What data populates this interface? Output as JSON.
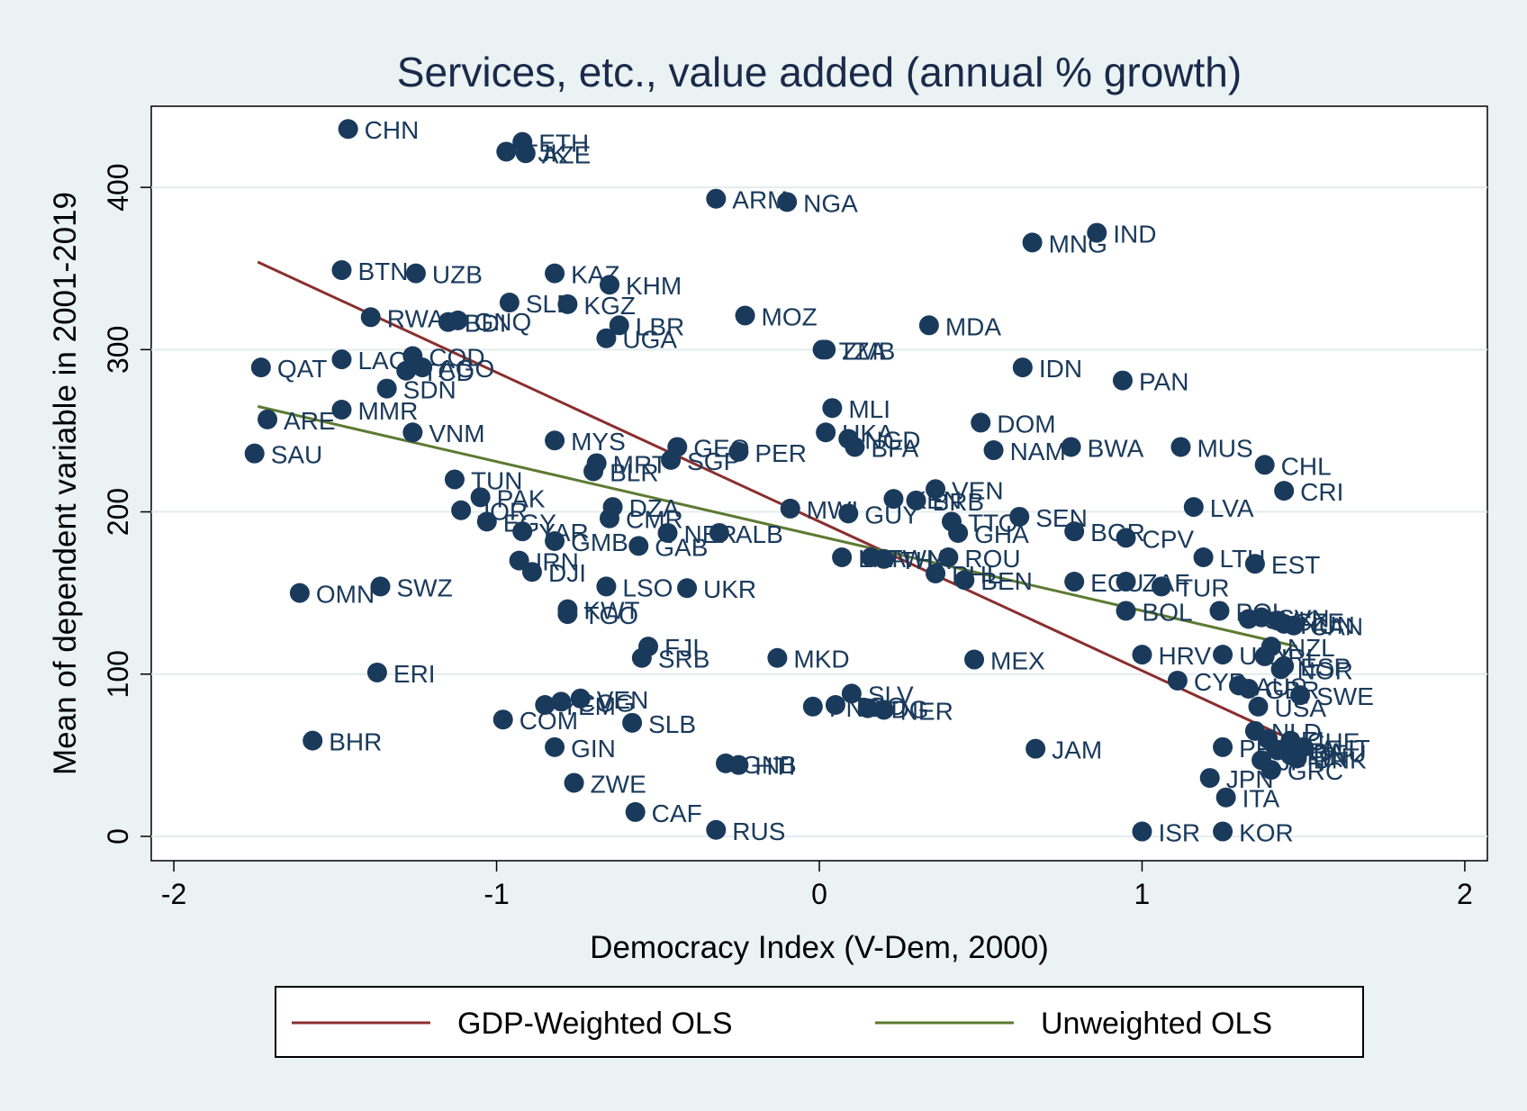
{
  "chart_data": {
    "type": "scatter",
    "title": "Services, etc., value added (annual % growth)",
    "xlabel": "Democracy Index (V-Dem, 2000)",
    "ylabel": "Mean of dependent variable in 2001-2019",
    "xlim": [
      -2.07,
      2.07
    ],
    "ylim": [
      -15,
      450
    ],
    "xticks": [
      -2,
      -1,
      0,
      1,
      2
    ],
    "yticks": [
      0,
      100,
      200,
      300,
      400
    ],
    "grid": "horizontal",
    "legend_position": "bottom",
    "colors": {
      "background": "#eaf2f3",
      "plot_bg": "#ffffff",
      "gridline": "#e3ecee",
      "marker": "#1a3a5c",
      "gdp_weighted": "#8b2e2e",
      "unweighted": "#5d7a32"
    },
    "series": [
      {
        "name": "Countries",
        "points": [
          {
            "label": "CHN",
            "x": -1.46,
            "y": 436
          },
          {
            "label": "ETH",
            "x": -0.92,
            "y": 428
          },
          {
            "label": "TJK",
            "x": -0.97,
            "y": 422
          },
          {
            "label": "AZE",
            "x": -0.91,
            "y": 421
          },
          {
            "label": "ARM",
            "x": -0.32,
            "y": 393
          },
          {
            "label": "NGA",
            "x": -0.1,
            "y": 391
          },
          {
            "label": "IND",
            "x": 0.86,
            "y": 372
          },
          {
            "label": "MNG",
            "x": 0.66,
            "y": 366
          },
          {
            "label": "BTN",
            "x": -1.48,
            "y": 349
          },
          {
            "label": "UZB",
            "x": -1.25,
            "y": 347
          },
          {
            "label": "KAZ",
            "x": -0.82,
            "y": 347
          },
          {
            "label": "KHM",
            "x": -0.65,
            "y": 340
          },
          {
            "label": "SLE",
            "x": -0.96,
            "y": 329
          },
          {
            "label": "KGZ",
            "x": -0.78,
            "y": 328
          },
          {
            "label": "RWA",
            "x": -1.39,
            "y": 320
          },
          {
            "label": "BDI",
            "x": -1.15,
            "y": 317
          },
          {
            "label": "GNQ",
            "x": -1.12,
            "y": 318
          },
          {
            "label": "LBR",
            "x": -0.62,
            "y": 315
          },
          {
            "label": "MOZ",
            "x": -0.23,
            "y": 321
          },
          {
            "label": "MDA",
            "x": 0.34,
            "y": 315
          },
          {
            "label": "UGA",
            "x": -0.66,
            "y": 307
          },
          {
            "label": "TZA",
            "x": 0.01,
            "y": 300
          },
          {
            "label": "ZMB",
            "x": 0.02,
            "y": 300
          },
          {
            "label": "QAT",
            "x": -1.73,
            "y": 289
          },
          {
            "label": "LAO",
            "x": -1.48,
            "y": 294
          },
          {
            "label": "COD",
            "x": -1.26,
            "y": 296
          },
          {
            "label": "TCD",
            "x": -1.28,
            "y": 287
          },
          {
            "label": "AGO",
            "x": -1.23,
            "y": 289
          },
          {
            "label": "IDN",
            "x": 0.63,
            "y": 289
          },
          {
            "label": "PAN",
            "x": 0.94,
            "y": 281
          },
          {
            "label": "SDN",
            "x": -1.34,
            "y": 276
          },
          {
            "label": "MLI",
            "x": 0.04,
            "y": 264
          },
          {
            "label": "MMR",
            "x": -1.48,
            "y": 263
          },
          {
            "label": "ARE",
            "x": -1.71,
            "y": 257
          },
          {
            "label": "DOM",
            "x": 0.5,
            "y": 255
          },
          {
            "label": "UKA",
            "x": 0.02,
            "y": 249
          },
          {
            "label": "NGD",
            "x": 0.09,
            "y": 245
          },
          {
            "label": "BFA",
            "x": 0.11,
            "y": 240
          },
          {
            "label": "VNM",
            "x": -1.26,
            "y": 249
          },
          {
            "label": "MYS",
            "x": -0.82,
            "y": 244
          },
          {
            "label": "GEO",
            "x": -0.44,
            "y": 240
          },
          {
            "label": "PER",
            "x": -0.25,
            "y": 237
          },
          {
            "label": "NAM",
            "x": 0.54,
            "y": 238
          },
          {
            "label": "BWA",
            "x": 0.78,
            "y": 240
          },
          {
            "label": "MUS",
            "x": 1.12,
            "y": 240
          },
          {
            "label": "SAU",
            "x": -1.75,
            "y": 236
          },
          {
            "label": "MRT",
            "x": -0.69,
            "y": 230
          },
          {
            "label": "SGP",
            "x": -0.46,
            "y": 232
          },
          {
            "label": "CHL",
            "x": 1.38,
            "y": 229
          },
          {
            "label": "BLR",
            "x": -0.7,
            "y": 225
          },
          {
            "label": "TUN",
            "x": -1.13,
            "y": 220
          },
          {
            "label": "VEN",
            "x": 0.36,
            "y": 214
          },
          {
            "label": "CRI",
            "x": 1.44,
            "y": 213
          },
          {
            "label": "PAK",
            "x": -1.05,
            "y": 209
          },
          {
            "label": "KEN",
            "x": 0.23,
            "y": 208
          },
          {
            "label": "BRB",
            "x": 0.3,
            "y": 207
          },
          {
            "label": "LVA",
            "x": 1.16,
            "y": 203
          },
          {
            "label": "DZA",
            "x": -0.64,
            "y": 203
          },
          {
            "label": "MWI",
            "x": -0.09,
            "y": 202
          },
          {
            "label": "JOR",
            "x": -1.11,
            "y": 201
          },
          {
            "label": "GUY",
            "x": 0.09,
            "y": 199
          },
          {
            "label": "CMR",
            "x": -0.65,
            "y": 196
          },
          {
            "label": "SEN",
            "x": 0.62,
            "y": 197
          },
          {
            "label": "TTO",
            "x": 0.41,
            "y": 194
          },
          {
            "label": "EGY",
            "x": -1.03,
            "y": 194
          },
          {
            "label": "YAR",
            "x": -0.92,
            "y": 188
          },
          {
            "label": "BGR",
            "x": 0.79,
            "y": 188
          },
          {
            "label": "GHA",
            "x": 0.43,
            "y": 187
          },
          {
            "label": "ALB",
            "x": -0.31,
            "y": 187
          },
          {
            "label": "NER",
            "x": -0.47,
            "y": 187
          },
          {
            "label": "CPV",
            "x": 0.95,
            "y": 184
          },
          {
            "label": "GMB",
            "x": -0.82,
            "y": 182
          },
          {
            "label": "GAB",
            "x": -0.56,
            "y": 179
          },
          {
            "label": "LKA",
            "x": 0.07,
            "y": 172
          },
          {
            "label": "TWN",
            "x": 0.16,
            "y": 172
          },
          {
            "label": "THA",
            "x": 0.2,
            "y": 171
          },
          {
            "label": "ROU",
            "x": 0.4,
            "y": 172
          },
          {
            "label": "LTU",
            "x": 1.19,
            "y": 172
          },
          {
            "label": "EST",
            "x": 1.35,
            "y": 168
          },
          {
            "label": "IRN",
            "x": -0.93,
            "y": 170
          },
          {
            "label": "DJI",
            "x": -0.89,
            "y": 163
          },
          {
            "label": "PHL",
            "x": 0.36,
            "y": 162
          },
          {
            "label": "BEN",
            "x": 0.45,
            "y": 158
          },
          {
            "label": "ECU",
            "x": 0.79,
            "y": 157
          },
          {
            "label": "ZAF",
            "x": 0.95,
            "y": 157
          },
          {
            "label": "TUR",
            "x": 1.06,
            "y": 154
          },
          {
            "label": "OMN",
            "x": -1.61,
            "y": 150
          },
          {
            "label": "SWZ",
            "x": -1.36,
            "y": 154
          },
          {
            "label": "LSO",
            "x": -0.66,
            "y": 154
          },
          {
            "label": "UKR",
            "x": -0.41,
            "y": 153
          },
          {
            "label": "BOL",
            "x": 0.95,
            "y": 139
          },
          {
            "label": "KWT",
            "x": -0.78,
            "y": 140
          },
          {
            "label": "TGO",
            "x": -0.78,
            "y": 137
          },
          {
            "label": "POL",
            "x": 1.24,
            "y": 139
          },
          {
            "label": "SVK",
            "x": 1.33,
            "y": 134
          },
          {
            "label": "SVN",
            "x": 1.37,
            "y": 135
          },
          {
            "label": "CZE",
            "x": 1.42,
            "y": 133
          },
          {
            "label": "HUN",
            "x": 1.44,
            "y": 131
          },
          {
            "label": "CAN",
            "x": 1.47,
            "y": 130
          },
          {
            "label": "NZL",
            "x": 1.4,
            "y": 117
          },
          {
            "label": "FJI",
            "x": -0.53,
            "y": 117
          },
          {
            "label": "SRB",
            "x": -0.55,
            "y": 110
          },
          {
            "label": "HRV",
            "x": 1.0,
            "y": 112
          },
          {
            "label": "URY",
            "x": 1.25,
            "y": 112
          },
          {
            "label": "IRL",
            "x": 1.38,
            "y": 111
          },
          {
            "label": "ESP",
            "x": 1.44,
            "y": 105
          },
          {
            "label": "NOR",
            "x": 1.43,
            "y": 103
          },
          {
            "label": "MKD",
            "x": -0.13,
            "y": 110
          },
          {
            "label": "MEX",
            "x": 0.48,
            "y": 109
          },
          {
            "label": "ERI",
            "x": -1.37,
            "y": 101
          },
          {
            "label": "CYP",
            "x": 1.11,
            "y": 96
          },
          {
            "label": "AUS",
            "x": 1.3,
            "y": 93
          },
          {
            "label": "GBR",
            "x": 1.33,
            "y": 91
          },
          {
            "label": "SWE",
            "x": 1.49,
            "y": 87
          },
          {
            "label": "USA",
            "x": 1.36,
            "y": 80
          },
          {
            "label": "SLV",
            "x": 0.1,
            "y": 88
          },
          {
            "label": "PNG",
            "x": -0.02,
            "y": 80
          },
          {
            "label": "TGO2",
            "x": 0.05,
            "y": 81
          },
          {
            "label": "IDG",
            "x": 0.15,
            "y": 79
          },
          {
            "label": "NER2",
            "x": 0.2,
            "y": 78
          },
          {
            "label": "VEN2",
            "x": -0.74,
            "y": 85
          },
          {
            "label": "COG",
            "x": -0.8,
            "y": 83
          },
          {
            "label": "YEM",
            "x": -0.85,
            "y": 81
          },
          {
            "label": "COM",
            "x": -0.98,
            "y": 72
          },
          {
            "label": "SLB",
            "x": -0.58,
            "y": 70
          },
          {
            "label": "BHR",
            "x": -1.57,
            "y": 59
          },
          {
            "label": "GIN",
            "x": -0.82,
            "y": 55
          },
          {
            "label": "JAM",
            "x": 0.67,
            "y": 54
          },
          {
            "label": "NLD",
            "x": 1.35,
            "y": 65
          },
          {
            "label": "BEL",
            "x": 1.39,
            "y": 60
          },
          {
            "label": "CHE",
            "x": 1.46,
            "y": 59
          },
          {
            "label": "AUT",
            "x": 1.5,
            "y": 55
          },
          {
            "label": "PRT",
            "x": 1.25,
            "y": 55
          },
          {
            "label": "FRA",
            "x": 1.42,
            "y": 53
          },
          {
            "label": "DEU",
            "x": 1.48,
            "y": 52
          },
          {
            "label": "FIN",
            "x": 1.46,
            "y": 50
          },
          {
            "label": "DNK",
            "x": 1.48,
            "y": 48
          },
          {
            "label": "JPN",
            "x": 1.37,
            "y": 47
          },
          {
            "label": "GRC",
            "x": 1.4,
            "y": 41
          },
          {
            "label": "GNB",
            "x": -0.29,
            "y": 45
          },
          {
            "label": "HTI",
            "x": -0.25,
            "y": 44
          },
          {
            "label": "ZWE",
            "x": -0.76,
            "y": 33
          },
          {
            "label": "JPN2",
            "x": 1.21,
            "y": 36
          },
          {
            "label": "ITA",
            "x": 1.26,
            "y": 24
          },
          {
            "label": "CAF",
            "x": -0.57,
            "y": 15
          },
          {
            "label": "RUS",
            "x": -0.32,
            "y": 4
          },
          {
            "label": "ISR",
            "x": 1.0,
            "y": 3
          },
          {
            "label": "KOR",
            "x": 1.25,
            "y": 3
          }
        ]
      }
    ],
    "fit_lines": [
      {
        "name": "GDP-Weighted OLS",
        "x": [
          -1.74,
          1.48
        ],
        "y": [
          354,
          58
        ]
      },
      {
        "name": "Unweighted OLS",
        "x": [
          -1.74,
          1.48
        ],
        "y": [
          265,
          117
        ]
      }
    ]
  }
}
